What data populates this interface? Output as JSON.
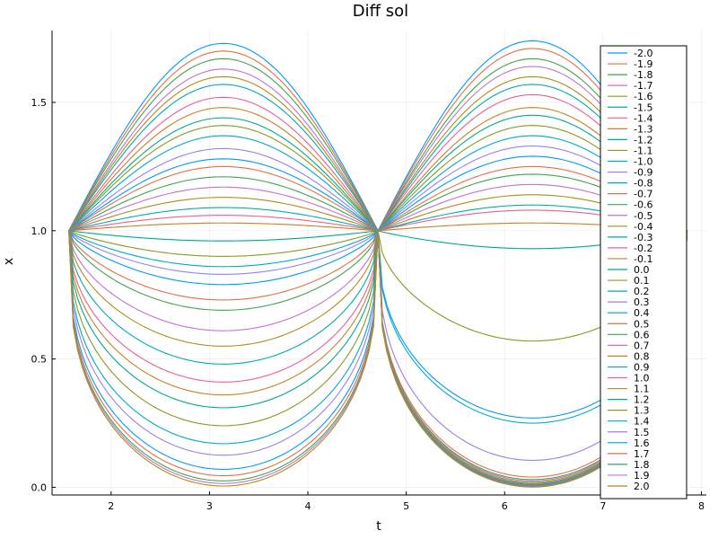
{
  "chart_data": {
    "type": "line",
    "title": "Diff sol",
    "xlabel": "t",
    "ylabel": "x",
    "xlim": [
      1.4,
      8.05
    ],
    "ylim": [
      -0.03,
      1.78
    ],
    "xticks": [
      2,
      3,
      4,
      5,
      6,
      7,
      8
    ],
    "yticks": [
      0.0,
      0.5,
      1.0,
      1.5
    ],
    "ytick_labels": [
      "0.0",
      "0.5",
      "1.0",
      "1.5"
    ],
    "grid": true,
    "legend_position": "right",
    "t_range": [
      1.5708,
      7.854
    ],
    "palette": [
      "#009AFA",
      "#E36F47",
      "#3EA44E",
      "#C371D2",
      "#AC8E18",
      "#00AAAE",
      "#ED5E93",
      "#C68225",
      "#00A98D",
      "#8E971E",
      "#00A9CD",
      "#9B7FE9"
    ],
    "series": [
      {
        "name": "-2.0",
        "peak1": 1.73,
        "peak2": 1.74
      },
      {
        "name": "-1.9",
        "peak1": 1.7,
        "peak2": 1.71
      },
      {
        "name": "-1.8",
        "peak1": 1.67,
        "peak2": 1.67
      },
      {
        "name": "-1.7",
        "peak1": 1.63,
        "peak2": 1.64
      },
      {
        "name": "-1.6",
        "peak1": 1.6,
        "peak2": 1.6
      },
      {
        "name": "-1.5",
        "peak1": 1.57,
        "peak2": 1.57
      },
      {
        "name": "-1.4",
        "peak1": 1.52,
        "peak2": 1.53
      },
      {
        "name": "-1.3",
        "peak1": 1.48,
        "peak2": 1.48
      },
      {
        "name": "-1.2",
        "peak1": 1.44,
        "peak2": 1.45
      },
      {
        "name": "-1.1",
        "peak1": 1.41,
        "peak2": 1.41
      },
      {
        "name": "-1.0",
        "peak1": 1.37,
        "peak2": 1.37
      },
      {
        "name": "-0.9",
        "peak1": 1.32,
        "peak2": 1.33
      },
      {
        "name": "-0.8",
        "peak1": 1.28,
        "peak2": 1.29
      },
      {
        "name": "-0.7",
        "peak1": 1.25,
        "peak2": 1.25
      },
      {
        "name": "-0.6",
        "peak1": 1.21,
        "peak2": 1.22
      },
      {
        "name": "-0.5",
        "peak1": 1.17,
        "peak2": 1.18
      },
      {
        "name": "-0.4",
        "peak1": 1.13,
        "peak2": 1.14
      },
      {
        "name": "-0.3",
        "peak1": 1.09,
        "peak2": 1.1
      },
      {
        "name": "-0.2",
        "peak1": 1.06,
        "peak2": 1.08
      },
      {
        "name": "-0.1",
        "peak1": 1.03,
        "peak2": 1.03
      },
      {
        "name": "0.0",
        "peak1": 0.96,
        "peak2": 0.93
      },
      {
        "name": "0.1",
        "peak1": 0.9,
        "peak2": 0.57
      },
      {
        "name": "0.2",
        "peak1": 0.86,
        "peak2": 0.25
      },
      {
        "name": "0.3",
        "peak1": 0.83,
        "peak2": 0.105
      },
      {
        "name": "0.4",
        "peak1": 0.79,
        "peak2": 0.27
      },
      {
        "name": "0.5",
        "peak1": 0.73,
        "peak2": 0.04
      },
      {
        "name": "0.6",
        "peak1": 0.69,
        "peak2": 0.03
      },
      {
        "name": "0.7",
        "peak1": 0.61,
        "peak2": 0.025
      },
      {
        "name": "0.8",
        "peak1": 0.55,
        "peak2": 0.02
      },
      {
        "name": "0.9",
        "peak1": 0.48,
        "peak2": 0.015
      },
      {
        "name": "1.0",
        "peak1": 0.41,
        "peak2": 0.012
      },
      {
        "name": "1.1",
        "peak1": 0.36,
        "peak2": 0.01
      },
      {
        "name": "1.2",
        "peak1": 0.31,
        "peak2": 0.008
      },
      {
        "name": "1.3",
        "peak1": 0.24,
        "peak2": 0.007
      },
      {
        "name": "1.4",
        "peak1": 0.17,
        "peak2": 0.006
      },
      {
        "name": "1.5",
        "peak1": 0.125,
        "peak2": 0.005
      },
      {
        "name": "1.6",
        "peak1": 0.07,
        "peak2": 0.004
      },
      {
        "name": "1.7",
        "peak1": 0.045,
        "peak2": 0.003
      },
      {
        "name": "1.8",
        "peak1": 0.025,
        "peak2": 0.002
      },
      {
        "name": "1.9",
        "peak1": 0.015,
        "peak2": 0.002
      },
      {
        "name": "2.0",
        "peak1": 0.005,
        "peak2": 0.001
      }
    ]
  }
}
